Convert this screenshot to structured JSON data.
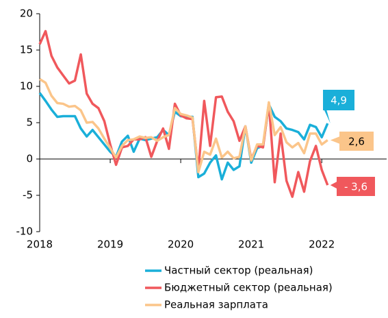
{
  "chart_data": {
    "type": "line",
    "x": [
      2018,
      2018.083,
      2018.167,
      2018.25,
      2018.333,
      2018.417,
      2018.5,
      2018.583,
      2018.667,
      2018.75,
      2018.833,
      2018.917,
      2019,
      2019.083,
      2019.167,
      2019.25,
      2019.333,
      2019.417,
      2019.5,
      2019.583,
      2019.667,
      2019.75,
      2019.833,
      2019.917,
      2020,
      2020.083,
      2020.167,
      2020.25,
      2020.333,
      2020.417,
      2020.5,
      2020.583,
      2020.667,
      2020.75,
      2020.833,
      2020.917,
      2021,
      2021.083,
      2021.167,
      2021.25,
      2021.333,
      2021.417,
      2021.5,
      2021.583,
      2021.667,
      2021.75,
      2021.833,
      2021.917,
      2022,
      2022.083
    ],
    "series": [
      {
        "name": "Частный сектор (реальная)",
        "color": "#1aafd9",
        "end_label": "4,9",
        "values": [
          9.1,
          8,
          6.8,
          5.8,
          5.9,
          5.9,
          5.9,
          4.2,
          3.1,
          4.0,
          3.0,
          2.0,
          1.0,
          0.3,
          2.4,
          3.2,
          1.0,
          2.8,
          2.6,
          2.8,
          3.0,
          4.0,
          3.3,
          6.5,
          5.9,
          5.8,
          5.8,
          -2.5,
          -2.0,
          -0.5,
          0.5,
          -2.8,
          -0.5,
          -1.5,
          -1.0,
          4.5,
          -0.5,
          1.5,
          1.8,
          7.5,
          5.8,
          5.2,
          4.2,
          4.0,
          3.7,
          2.7,
          4.7,
          4.4,
          3.0,
          4.9
        ]
      },
      {
        "name": "Бюджетный сектор (реальная)",
        "color": "#f0585c",
        "end_label": "- 3,6",
        "values": [
          15.8,
          17.6,
          14.2,
          12.6,
          11.5,
          10.4,
          10.8,
          14.4,
          9.0,
          7.6,
          7.0,
          5.2,
          2.0,
          -0.8,
          1.6,
          1.8,
          2.7,
          2.7,
          3.0,
          0.3,
          2.5,
          4.2,
          1.4,
          7.6,
          6.0,
          5.6,
          5.5,
          -1.5,
          8.0,
          1.8,
          8.5,
          8.6,
          6.5,
          5.2,
          2.5,
          4.5,
          0.0,
          1.8,
          1.6,
          7.7,
          -3.2,
          3.5,
          -3.0,
          -5.2,
          -1.8,
          -4.5,
          -0.3,
          1.8,
          -1.5,
          -3.6
        ]
      },
      {
        "name": "Реальная зарплата",
        "color": "#fbc58a",
        "end_label": "2,6",
        "values": [
          11.0,
          10.5,
          8.7,
          7.7,
          7.6,
          7.2,
          7.3,
          6.7,
          5.0,
          5.1,
          4.2,
          2.8,
          1.5,
          0.2,
          1.8,
          2.6,
          2.7,
          3.1,
          2.9,
          3.0,
          2.5,
          3.0,
          3.3,
          7.0,
          6.2,
          6.0,
          5.7,
          -1.8,
          1.0,
          0.6,
          2.8,
          0.2,
          1.0,
          0.1,
          0.3,
          4.5,
          -0.2,
          2.0,
          2.0,
          7.8,
          3.3,
          4.4,
          2.3,
          1.6,
          2.2,
          0.8,
          3.5,
          3.5,
          2.0,
          2.6
        ]
      }
    ],
    "xlim": [
      2018,
      2022.92
    ],
    "xticks": [
      2018,
      2019,
      2020,
      2021,
      2022
    ],
    "ylim": [
      -10,
      20
    ],
    "yticks": [
      20,
      15,
      10,
      5,
      0,
      -5,
      -10
    ]
  }
}
